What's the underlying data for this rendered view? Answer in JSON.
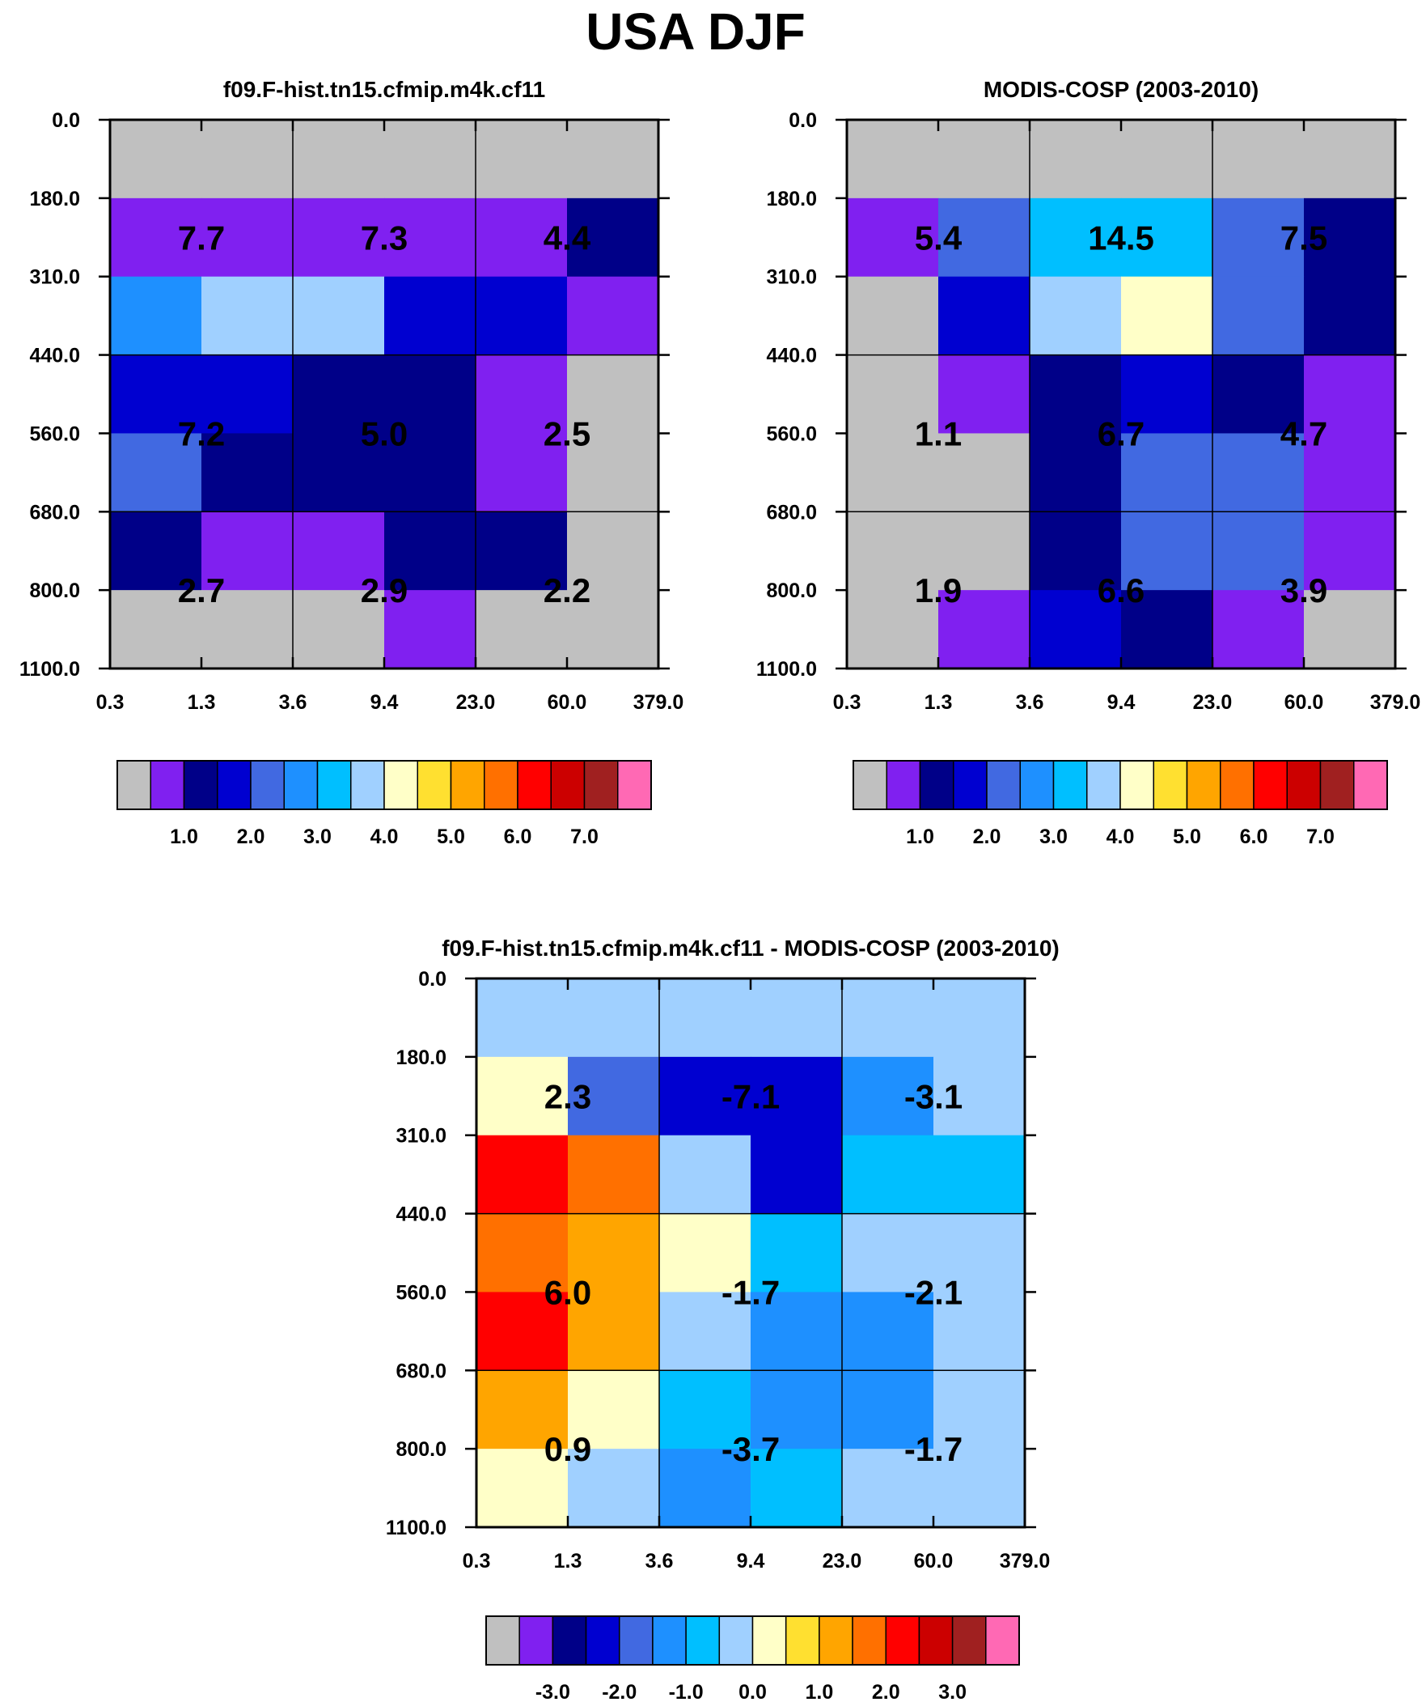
{
  "title": "USA DJF",
  "colors": {
    "gray": "#c0c0c0",
    "purple": "#8020f0",
    "navy": "#000088",
    "blue": "#0000d0",
    "royal": "#4169e1",
    "dodger": "#1e90ff",
    "cyan": "#00bfff",
    "lightblue": "#a0d0ff",
    "cream": "#ffffc8",
    "yellow": "#ffe030",
    "orange": "#ffa500",
    "dkorange": "#ff7000",
    "red": "#ff0000",
    "dkred": "#cc0000",
    "brown": "#a02020",
    "pink": "#ff69b4"
  },
  "chart_data": [
    {
      "type": "heatmap",
      "title": "f09.F-hist.tn15.cfmip.m4k.cf11",
      "x_ticks": [
        "0.3",
        "1.3",
        "3.6",
        "9.4",
        "23.0",
        "60.0",
        "379.0"
      ],
      "y_ticks": [
        "0.0",
        "180.0",
        "310.0",
        "440.0",
        "560.0",
        "680.0",
        "800.0",
        "1100.0"
      ],
      "cells": [
        [
          "gray",
          "gray",
          "gray",
          "gray",
          "gray",
          "gray"
        ],
        [
          "purple",
          "purple",
          "purple",
          "purple",
          "purple",
          "navy"
        ],
        [
          "dodger",
          "lightblue",
          "lightblue",
          "blue",
          "blue",
          "purple"
        ],
        [
          "blue",
          "blue",
          "navy",
          "navy",
          "purple",
          "gray"
        ],
        [
          "royal",
          "navy",
          "navy",
          "navy",
          "purple",
          "gray"
        ],
        [
          "navy",
          "purple",
          "purple",
          "navy",
          "navy",
          "gray"
        ],
        [
          "gray",
          "gray",
          "gray",
          "purple",
          "gray",
          "gray"
        ]
      ],
      "labels": [
        [
          "7.7",
          "7.3",
          "4.4"
        ],
        [
          "7.2",
          "5.0",
          "2.5"
        ],
        [
          "2.7",
          "2.9",
          "2.2"
        ]
      ],
      "colorbar": {
        "colors": [
          "gray",
          "purple",
          "navy",
          "blue",
          "royal",
          "dodger",
          "cyan",
          "lightblue",
          "cream",
          "yellow",
          "orange",
          "dkorange",
          "red",
          "dkred",
          "brown",
          "pink"
        ],
        "ticks": [
          "1.0",
          "2.0",
          "3.0",
          "4.0",
          "5.0",
          "6.0",
          "7.0"
        ]
      }
    },
    {
      "type": "heatmap",
      "title": "MODIS-COSP (2003-2010)",
      "x_ticks": [
        "0.3",
        "1.3",
        "3.6",
        "9.4",
        "23.0",
        "60.0",
        "379.0"
      ],
      "y_ticks": [
        "0.0",
        "180.0",
        "310.0",
        "440.0",
        "560.0",
        "680.0",
        "800.0",
        "1100.0"
      ],
      "cells": [
        [
          "gray",
          "gray",
          "gray",
          "gray",
          "gray",
          "gray"
        ],
        [
          "purple",
          "royal",
          "cyan",
          "cyan",
          "royal",
          "navy"
        ],
        [
          "gray",
          "blue",
          "lightblue",
          "cream",
          "royal",
          "navy"
        ],
        [
          "gray",
          "purple",
          "navy",
          "blue",
          "navy",
          "purple"
        ],
        [
          "gray",
          "gray",
          "navy",
          "royal",
          "royal",
          "purple"
        ],
        [
          "gray",
          "gray",
          "navy",
          "royal",
          "royal",
          "purple"
        ],
        [
          "gray",
          "purple",
          "blue",
          "navy",
          "purple",
          "gray"
        ]
      ],
      "labels": [
        [
          "5.4",
          "14.5",
          "7.5"
        ],
        [
          "1.1",
          "6.7",
          "4.7"
        ],
        [
          "1.9",
          "6.6",
          "3.9"
        ]
      ],
      "colorbar": {
        "colors": [
          "gray",
          "purple",
          "navy",
          "blue",
          "royal",
          "dodger",
          "cyan",
          "lightblue",
          "cream",
          "yellow",
          "orange",
          "dkorange",
          "red",
          "dkred",
          "brown",
          "pink"
        ],
        "ticks": [
          "1.0",
          "2.0",
          "3.0",
          "4.0",
          "5.0",
          "6.0",
          "7.0"
        ]
      }
    },
    {
      "type": "heatmap",
      "title": "f09.F-hist.tn15.cfmip.m4k.cf11 - MODIS-COSP (2003-2010)",
      "x_ticks": [
        "0.3",
        "1.3",
        "3.6",
        "9.4",
        "23.0",
        "60.0",
        "379.0"
      ],
      "y_ticks": [
        "0.0",
        "180.0",
        "310.0",
        "440.0",
        "560.0",
        "680.0",
        "800.0",
        "1100.0"
      ],
      "cells": [
        [
          "lightblue",
          "lightblue",
          "lightblue",
          "lightblue",
          "lightblue",
          "lightblue"
        ],
        [
          "cream",
          "royal",
          "blue",
          "blue",
          "dodger",
          "lightblue"
        ],
        [
          "red",
          "dkorange",
          "lightblue",
          "blue",
          "cyan",
          "cyan"
        ],
        [
          "dkorange",
          "orange",
          "cream",
          "cyan",
          "lightblue",
          "lightblue"
        ],
        [
          "red",
          "orange",
          "lightblue",
          "dodger",
          "dodger",
          "lightblue"
        ],
        [
          "orange",
          "cream",
          "cyan",
          "dodger",
          "dodger",
          "lightblue"
        ],
        [
          "cream",
          "lightblue",
          "dodger",
          "cyan",
          "lightblue",
          "lightblue"
        ]
      ],
      "labels": [
        [
          "2.3",
          "-7.1",
          "-3.1"
        ],
        [
          "6.0",
          "-1.7",
          "-2.1"
        ],
        [
          "0.9",
          "-3.7",
          "-1.7"
        ]
      ],
      "colorbar": {
        "colors": [
          "gray",
          "purple",
          "navy",
          "blue",
          "royal",
          "dodger",
          "cyan",
          "lightblue",
          "cream",
          "yellow",
          "orange",
          "dkorange",
          "red",
          "dkred",
          "brown",
          "pink"
        ],
        "ticks": [
          "-3.0",
          "-2.0",
          "-1.0",
          "0.0",
          "1.0",
          "2.0",
          "3.0"
        ]
      }
    }
  ]
}
